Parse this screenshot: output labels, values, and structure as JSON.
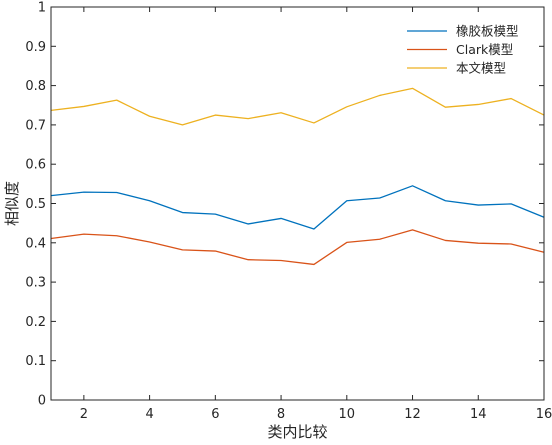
{
  "chart_data": {
    "type": "line",
    "xlabel": "类内比较",
    "ylabel": "相似度",
    "xlim": [
      1,
      16
    ],
    "ylim": [
      0,
      1
    ],
    "xticks": [
      2,
      4,
      6,
      8,
      10,
      12,
      14,
      16
    ],
    "yticks": [
      0,
      0.1,
      0.2,
      0.3,
      0.4,
      0.5,
      0.6,
      0.7,
      0.8,
      0.9,
      1
    ],
    "ytick_labels": [
      "0",
      "0.1",
      "0.2",
      "0.3",
      "0.4",
      "0.5",
      "0.6",
      "0.7",
      "0.8",
      "0.9",
      "1"
    ],
    "grid": false,
    "legend_position": "top-right",
    "x": [
      1,
      2,
      3,
      4,
      5,
      6,
      7,
      8,
      9,
      10,
      11,
      12,
      13,
      14,
      15,
      16
    ],
    "series": [
      {
        "name": "橡胶板模型",
        "color": "#0072BD",
        "values": [
          0.52,
          0.529,
          0.528,
          0.507,
          0.477,
          0.473,
          0.448,
          0.462,
          0.435,
          0.507,
          0.514,
          0.545,
          0.507,
          0.496,
          0.499,
          0.465
        ]
      },
      {
        "name": "Clark模型",
        "color": "#D95319",
        "values": [
          0.411,
          0.422,
          0.418,
          0.402,
          0.382,
          0.379,
          0.357,
          0.355,
          0.345,
          0.401,
          0.409,
          0.433,
          0.406,
          0.399,
          0.397,
          0.376
        ]
      },
      {
        "name": "本文模型",
        "color": "#EDB120",
        "values": [
          0.737,
          0.747,
          0.763,
          0.722,
          0.7,
          0.725,
          0.716,
          0.731,
          0.705,
          0.746,
          0.775,
          0.793,
          0.745,
          0.752,
          0.767,
          0.725
        ]
      }
    ]
  }
}
